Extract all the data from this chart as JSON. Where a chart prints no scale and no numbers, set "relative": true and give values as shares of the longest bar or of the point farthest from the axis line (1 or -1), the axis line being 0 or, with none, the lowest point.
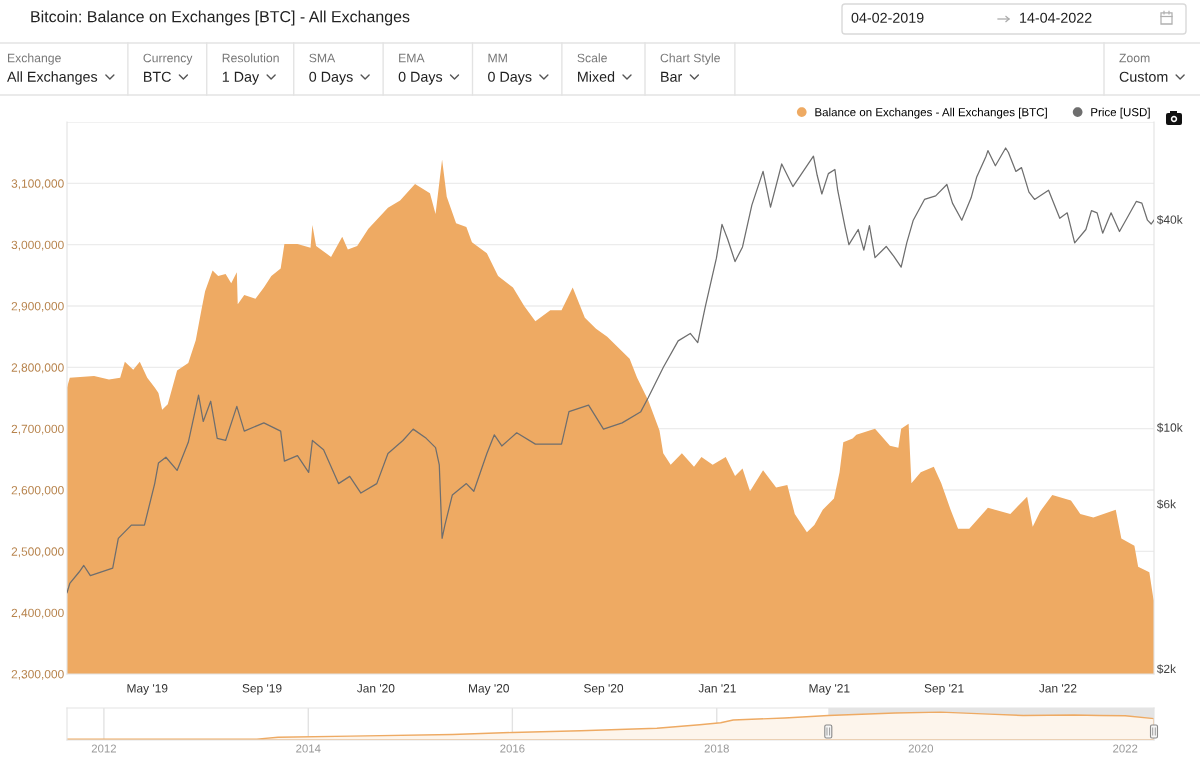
{
  "chart_data": [
    {
      "type": "area",
      "title": "Bitcoin: Balance on Exchanges [BTC] - All Exchanges",
      "annotations": [
        "04-02-2019",
        "14-04-2022",
        "Exchange",
        "All Exchanges",
        "Currency",
        "BTC",
        "Resolution",
        "1 Day",
        "SMA",
        "0 Days",
        "EMA",
        "0 Days",
        "MM",
        "0 Days",
        "Scale",
        "Mixed",
        "Chart Style",
        "Bar",
        "Zoom",
        "Custom"
      ],
      "series": [
        {
          "name": "Balance on Exchanges - All Exchanges [BTC]",
          "type": "area",
          "color": "#eeaa63",
          "x": [
            "2019-02-04",
            "2019-02-07",
            "2019-03-05",
            "2019-03-21",
            "2019-04-02",
            "2019-04-07",
            "2019-04-16",
            "2019-04-23",
            "2019-05-01",
            "2019-05-09",
            "2019-05-13",
            "2019-05-17",
            "2019-05-23",
            "2019-06-02",
            "2019-06-14",
            "2019-06-22",
            "2019-06-28",
            "2019-07-02",
            "2019-07-10",
            "2019-07-16",
            "2019-07-24",
            "2019-07-30",
            "2019-08-05",
            "2019-08-06",
            "2019-08-13",
            "2019-08-25",
            "2019-09-03",
            "2019-09-11",
            "2019-09-21",
            "2019-09-25",
            "2019-10-09",
            "2019-10-23",
            "2019-10-25",
            "2019-10-29",
            "2019-11-14",
            "2019-11-26",
            "2019-12-02",
            "2019-12-12",
            "2019-12-24",
            "2020-01-14",
            "2020-01-27",
            "2020-02-12",
            "2020-02-28",
            "2020-03-05",
            "2020-03-12",
            "2020-03-17",
            "2020-03-27",
            "2020-04-07",
            "2020-04-13",
            "2020-04-29",
            "2020-05-11",
            "2020-05-27",
            "2020-06-08",
            "2020-06-20",
            "2020-07-06",
            "2020-07-18",
            "2020-07-30",
            "2020-08-12",
            "2020-08-24",
            "2020-09-05",
            "2020-09-17",
            "2020-09-29",
            "2020-10-07",
            "2020-10-19",
            "2020-10-31",
            "2020-11-04",
            "2020-11-12",
            "2020-11-24",
            "2020-12-07",
            "2020-12-15",
            "2020-12-27",
            "2021-01-10",
            "2021-01-20",
            "2021-01-28",
            "2021-02-05",
            "2021-02-19",
            "2021-03-05",
            "2021-03-17",
            "2021-03-25",
            "2021-04-07",
            "2021-04-15",
            "2021-04-24",
            "2021-05-06",
            "2021-05-12",
            "2021-05-16",
            "2021-05-26",
            "2021-05-30",
            "2021-06-19",
            "2021-07-05",
            "2021-07-14",
            "2021-07-17",
            "2021-07-25",
            "2021-07-28",
            "2021-08-07",
            "2021-08-21",
            "2021-08-29",
            "2021-09-08",
            "2021-09-16",
            "2021-09-28",
            "2021-10-18",
            "2021-11-11",
            "2021-11-29",
            "2021-12-05",
            "2021-12-13",
            "2021-12-26",
            "2022-01-15",
            "2022-01-25",
            "2022-02-08",
            "2022-03-04",
            "2022-03-10",
            "2022-03-24",
            "2022-03-28",
            "2022-04-09",
            "2022-04-13",
            "2022-04-14"
          ],
          "values": [
            2767000,
            2783000,
            2786000,
            2780000,
            2783000,
            2809000,
            2796000,
            2809000,
            2783000,
            2767000,
            2758000,
            2731000,
            2740000,
            2795000,
            2807000,
            2844000,
            2893000,
            2924000,
            2958000,
            2949000,
            2952000,
            2937000,
            2955000,
            2903000,
            2918000,
            2912000,
            2930000,
            2949000,
            2961000,
            3001000,
            3001000,
            2995000,
            3032000,
            2998000,
            2980000,
            3013000,
            2992000,
            2998000,
            3026000,
            3060000,
            3072000,
            3099000,
            3084000,
            3050000,
            3139000,
            3078000,
            3035000,
            3029000,
            3004000,
            2986000,
            2949000,
            2930000,
            2900000,
            2875000,
            2893000,
            2893000,
            2930000,
            2881000,
            2863000,
            2850000,
            2832000,
            2814000,
            2783000,
            2746000,
            2697000,
            2660000,
            2641000,
            2660000,
            2638000,
            2654000,
            2641000,
            2654000,
            2623000,
            2635000,
            2598000,
            2632000,
            2604000,
            2608000,
            2561000,
            2531000,
            2543000,
            2568000,
            2586000,
            2629000,
            2678000,
            2684000,
            2690000,
            2700000,
            2672000,
            2669000,
            2700000,
            2708000,
            2611000,
            2629000,
            2638000,
            2611000,
            2568000,
            2537000,
            2537000,
            2571000,
            2561000,
            2589000,
            2540000,
            2565000,
            2592000,
            2583000,
            2561000,
            2555000,
            2568000,
            2521000,
            2509000,
            2475000,
            2466000,
            2426000,
            2420000
          ]
        },
        {
          "name": "Price [USD]",
          "type": "line",
          "axis": "y2",
          "color": "#6e6e6e",
          "x": [
            "2019-02-04",
            "2019-02-07",
            "2019-02-17",
            "2019-02-22",
            "2019-03-01",
            "2019-03-25",
            "2019-03-31",
            "2019-04-14",
            "2019-04-28",
            "2019-05-09",
            "2019-05-13",
            "2019-05-21",
            "2019-06-02",
            "2019-06-14",
            "2019-06-25",
            "2019-06-30",
            "2019-07-08",
            "2019-07-15",
            "2019-07-24",
            "2019-08-05",
            "2019-08-13",
            "2019-09-03",
            "2019-09-21",
            "2019-09-25",
            "2019-10-09",
            "2019-10-21",
            "2019-10-25",
            "2019-11-06",
            "2019-11-22",
            "2019-12-04",
            "2019-12-16",
            "2020-01-02",
            "2020-01-14",
            "2020-01-30",
            "2020-02-10",
            "2020-02-24",
            "2020-03-05",
            "2020-03-09",
            "2020-03-12",
            "2020-03-15",
            "2020-03-23",
            "2020-04-07",
            "2020-04-15",
            "2020-04-29",
            "2020-05-07",
            "2020-05-15",
            "2020-05-31",
            "2020-06-20",
            "2020-07-18",
            "2020-07-26",
            "2020-08-16",
            "2020-09-01",
            "2020-09-21",
            "2020-10-11",
            "2020-10-19",
            "2020-11-04",
            "2020-11-20",
            "2020-12-03",
            "2020-12-11",
            "2020-12-19",
            "2020-12-31",
            "2021-01-06",
            "2021-01-12",
            "2021-01-20",
            "2021-01-28",
            "2021-02-07",
            "2021-02-19",
            "2021-02-27",
            "2021-03-11",
            "2021-03-23",
            "2021-04-14",
            "2021-04-18",
            "2021-04-23",
            "2021-04-30",
            "2021-05-07",
            "2021-05-10",
            "2021-05-18",
            "2021-05-22",
            "2021-06-01",
            "2021-06-07",
            "2021-06-13",
            "2021-06-19",
            "2021-07-01",
            "2021-07-09",
            "2021-07-17",
            "2021-07-23",
            "2021-07-30",
            "2021-08-11",
            "2021-08-23",
            "2021-09-04",
            "2021-09-10",
            "2021-09-20",
            "2021-09-30",
            "2021-10-06",
            "2021-10-16",
            "2021-10-18",
            "2021-10-26",
            "2021-11-06",
            "2021-11-09",
            "2021-11-17",
            "2021-11-23",
            "2021-12-01",
            "2021-12-07",
            "2021-12-22",
            "2022-01-03",
            "2022-01-11",
            "2022-01-19",
            "2022-01-31",
            "2022-02-06",
            "2022-02-12",
            "2022-02-18",
            "2022-02-27",
            "2022-03-08",
            "2022-03-16",
            "2022-03-26",
            "2022-04-01",
            "2022-04-07",
            "2022-04-11",
            "2022-04-14"
          ],
          "values": [
            3320,
            3530,
            3810,
            3980,
            3720,
            3910,
            4770,
            5210,
            5210,
            6870,
            7880,
            8190,
            7500,
            9050,
            12400,
            10400,
            11900,
            9290,
            9160,
            11500,
            9750,
            10300,
            9750,
            7980,
            8280,
            7400,
            9160,
            8610,
            6870,
            7210,
            6450,
            6870,
            8400,
            9160,
            9880,
            9290,
            8730,
            7780,
            4770,
            5210,
            6370,
            6870,
            6530,
            8400,
            9510,
            8830,
            9640,
            8940,
            8940,
            11100,
            11600,
            9880,
            10300,
            11100,
            12200,
            14900,
            17800,
            18700,
            17600,
            22300,
            30900,
            38700,
            35100,
            30200,
            33300,
            44000,
            55100,
            43400,
            57900,
            49800,
            61000,
            53700,
            47400,
            54300,
            55800,
            48600,
            37900,
            33800,
            37400,
            32600,
            38400,
            31000,
            33400,
            31300,
            29100,
            34200,
            39800,
            45700,
            46800,
            50500,
            44600,
            39800,
            46200,
            53100,
            61000,
            63300,
            57200,
            64400,
            62500,
            55100,
            56500,
            48000,
            45700,
            48600,
            40300,
            41800,
            34200,
            37400,
            42400,
            41800,
            36500,
            41800,
            36900,
            40300,
            45100,
            44600,
            39800,
            38800,
            39800
          ]
        }
      ],
      "xlim": [
        "2019-02-04",
        "2022-04-14"
      ],
      "xticks": [
        {
          "value": "2019-05-01",
          "label": "May '19"
        },
        {
          "value": "2019-09-01",
          "label": "Sep '19"
        },
        {
          "value": "2020-01-01",
          "label": "Jan '20"
        },
        {
          "value": "2020-05-01",
          "label": "May '20"
        },
        {
          "value": "2020-09-01",
          "label": "Sep '20"
        },
        {
          "value": "2021-01-01",
          "label": "Jan '21"
        },
        {
          "value": "2021-05-01",
          "label": "May '21"
        },
        {
          "value": "2021-09-01",
          "label": "Sep '21"
        },
        {
          "value": "2022-01-01",
          "label": "Jan '22"
        }
      ],
      "ylim": [
        2300000,
        3200000
      ],
      "yticks": [
        {
          "value": 2300000,
          "label": "2,300,000"
        },
        {
          "value": 2400000,
          "label": "2,400,000"
        },
        {
          "value": 2500000,
          "label": "2,500,000"
        },
        {
          "value": 2600000,
          "label": "2,600,000"
        },
        {
          "value": 2700000,
          "label": "2,700,000"
        },
        {
          "value": 2800000,
          "label": "2,800,000"
        },
        {
          "value": 2900000,
          "label": "2,900,000"
        },
        {
          "value": 3000000,
          "label": "3,000,000"
        },
        {
          "value": 3100000,
          "label": "3,100,000"
        },
        {
          "value": 3200000,
          "label": null
        }
      ],
      "y2lim": [
        1930,
        76600
      ],
      "y2ticks": [
        {
          "value": 2000,
          "label": "$2k"
        },
        {
          "value": 6000,
          "label": "$6k"
        },
        {
          "value": 10000,
          "label": "$10k"
        },
        {
          "value": 40000,
          "label": "$40k"
        }
      ],
      "log": "y2",
      "grid": "y",
      "legend": "top right"
    },
    {
      "type": "area",
      "relative": true,
      "x": [
        "2011-08-22",
        "2013-07-01",
        "2013-09-15",
        "2014-06-01",
        "2015-06-01",
        "2016-01-01",
        "2016-09-01",
        "2017-06-01",
        "2017-11-01",
        "2018-01-15",
        "2018-03-01",
        "2018-09-01",
        "2019-02-04",
        "2019-10-01",
        "2020-03-12",
        "2020-09-01",
        "2021-01-01",
        "2021-07-01",
        "2021-10-01",
        "2022-01-01",
        "2022-04-14"
      ],
      "series": [
        {
          "color": "#eeaa63",
          "values": [
            0.03,
            0.03,
            0.1,
            0.14,
            0.2,
            0.27,
            0.33,
            0.42,
            0.55,
            0.62,
            0.72,
            0.79,
            0.88,
            0.97,
            1,
            0.93,
            0.88,
            0.9,
            0.88,
            0.87,
            0.77
          ]
        }
      ],
      "xlim": [
        "2011-08-22",
        "2022-04-14"
      ],
      "xticks": [
        {
          "value": "2012-01-01",
          "label": "2012"
        },
        {
          "value": "2014-01-01",
          "label": "2014"
        },
        {
          "value": "2016-01-01",
          "label": "2016"
        },
        {
          "value": "2018-01-01",
          "label": "2018"
        },
        {
          "value": "2020-01-01",
          "label": "2020"
        },
        {
          "value": "2022-01-01",
          "label": "2022"
        }
      ],
      "grid": "x",
      "bands": [
        {
          "axis": "x",
          "from": "2019-02-04",
          "to": "2022-04-14",
          "color": "#e4e4e4"
        }
      ]
    }
  ]
}
